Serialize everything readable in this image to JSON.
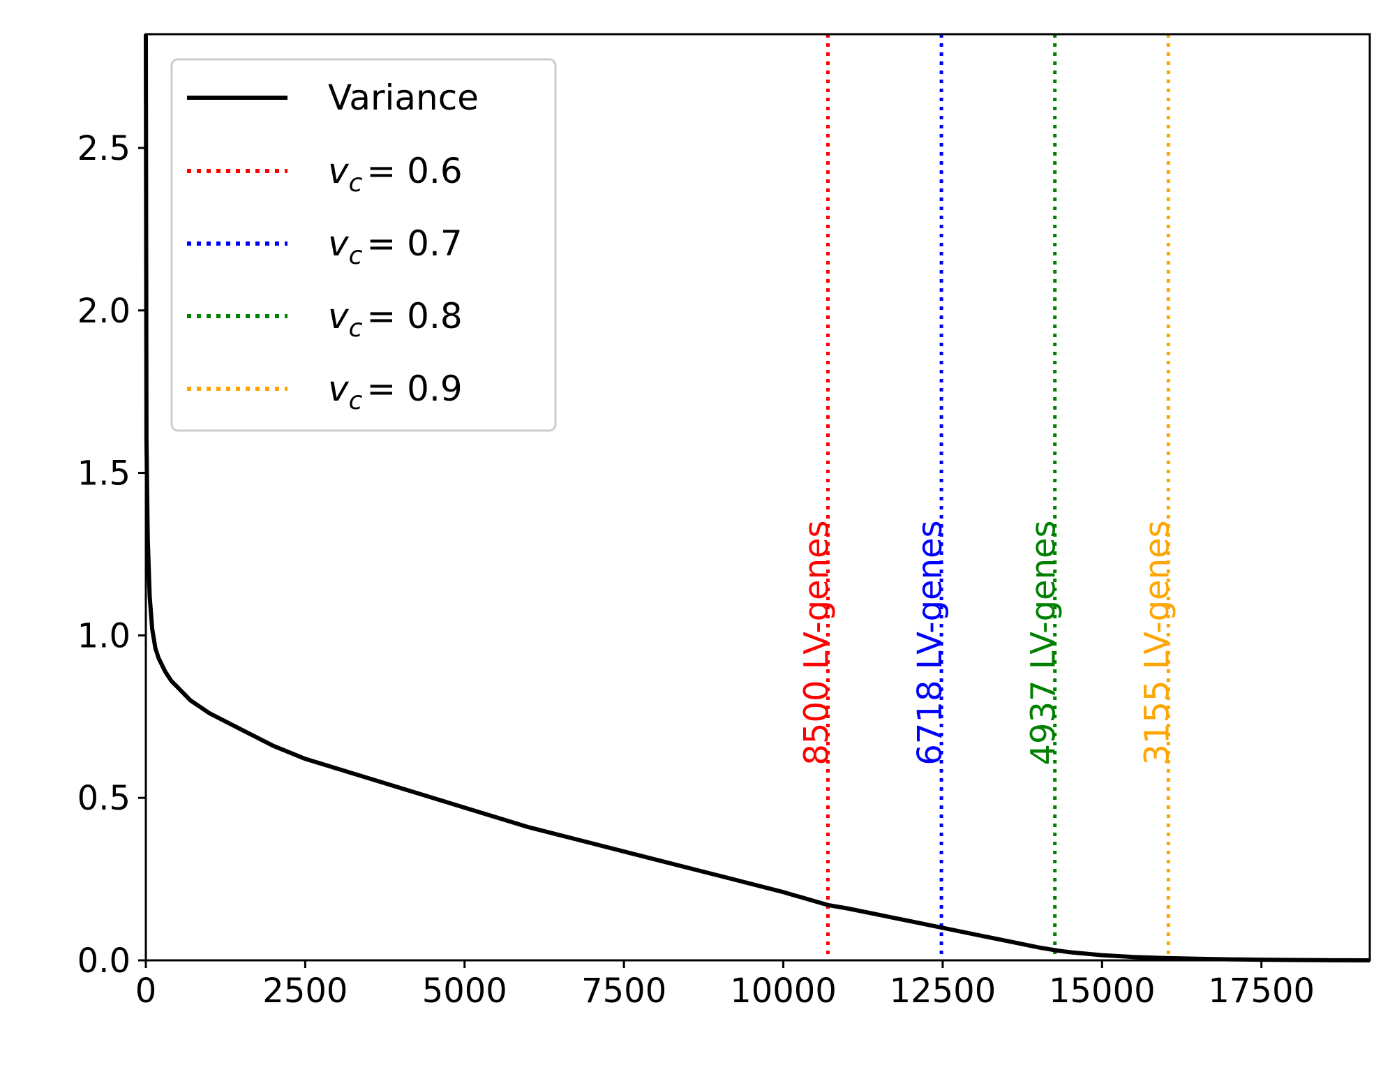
{
  "chart_data": {
    "type": "line",
    "title": "",
    "xlabel": "",
    "ylabel": "",
    "xlim": [
      0,
      19200
    ],
    "ylim": [
      0,
      2.85
    ],
    "grid": false,
    "legend_position": "top-left",
    "x_ticks": [
      {
        "value": 0,
        "label": "0"
      },
      {
        "value": 2500,
        "label": "2500"
      },
      {
        "value": 5000,
        "label": "5000"
      },
      {
        "value": 7500,
        "label": "7500"
      },
      {
        "value": 10000,
        "label": "10000"
      },
      {
        "value": 12500,
        "label": "12500"
      },
      {
        "value": 15000,
        "label": "15000"
      },
      {
        "value": 17500,
        "label": "17500"
      }
    ],
    "y_ticks": [
      {
        "value": 0.0,
        "label": "0.0"
      },
      {
        "value": 0.5,
        "label": "0.5"
      },
      {
        "value": 1.0,
        "label": "1.0"
      },
      {
        "value": 1.5,
        "label": "1.5"
      },
      {
        "value": 2.0,
        "label": "2.0"
      },
      {
        "value": 2.5,
        "label": "2.5"
      }
    ],
    "series": [
      {
        "name": "Variance",
        "color": "#000000",
        "style": "solid",
        "x": [
          0,
          10,
          30,
          60,
          100,
          150,
          200,
          300,
          400,
          500,
          700,
          1000,
          1500,
          2000,
          2500,
          3000,
          4000,
          5000,
          6000,
          7000,
          8000,
          9000,
          10000,
          10700,
          11000,
          12000,
          12500,
          13000,
          13500,
          14000,
          14300,
          14500,
          15000,
          15500,
          16000,
          16500,
          17000,
          17500,
          18000,
          18500,
          19200
        ],
        "y": [
          2.85,
          1.6,
          1.3,
          1.12,
          1.02,
          0.96,
          0.93,
          0.89,
          0.86,
          0.84,
          0.8,
          0.76,
          0.71,
          0.66,
          0.62,
          0.59,
          0.53,
          0.47,
          0.41,
          0.36,
          0.31,
          0.26,
          0.21,
          0.17,
          0.16,
          0.12,
          0.1,
          0.08,
          0.06,
          0.04,
          0.03,
          0.025,
          0.016,
          0.01,
          0.007,
          0.005,
          0.003,
          0.002,
          0.001,
          0.0005,
          0.0
        ]
      }
    ],
    "vlines": [
      {
        "name": "v_c = 0.6",
        "v_label": "v",
        "sub": "c",
        "value_label": "= 0.6",
        "x": 10700,
        "color": "#ff0000",
        "annotation": "8500 LV-genes"
      },
      {
        "name": "v_c = 0.7",
        "v_label": "v",
        "sub": "c",
        "value_label": "= 0.7",
        "x": 12480,
        "color": "#0000ff",
        "annotation": "6718 LV-genes"
      },
      {
        "name": "v_c = 0.8",
        "v_label": "v",
        "sub": "c",
        "value_label": "= 0.8",
        "x": 14260,
        "color": "#008000",
        "annotation": "4937 LV-genes"
      },
      {
        "name": "v_c = 0.9",
        "v_label": "v",
        "sub": "c",
        "value_label": "= 0.9",
        "x": 16040,
        "color": "#ffa500",
        "annotation": "3155 LV-genes"
      }
    ],
    "annotation_y": 0.6
  }
}
